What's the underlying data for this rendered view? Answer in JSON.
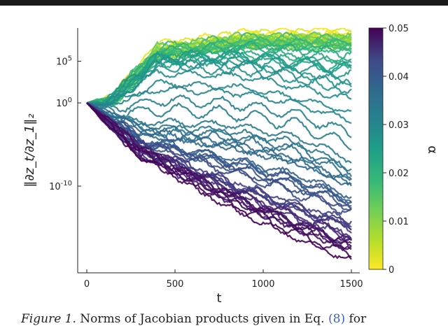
{
  "chart_data": {
    "type": "line",
    "title": "",
    "xlabel": "t",
    "ylabel": "‖∂z_t/∂z_1‖₂",
    "x_range": [
      0,
      1500
    ],
    "y_scale": "log",
    "y_range_log10": [
      -20,
      9
    ],
    "x_ticks": [
      0,
      500,
      1000,
      1500
    ],
    "x_tick_labels": [
      "0",
      "500",
      "1000",
      "1500"
    ],
    "y_ticks_log10": [
      -10,
      0,
      5
    ],
    "y_tick_labels": [
      "10",
      "10",
      "10"
    ],
    "y_tick_exponents": [
      "-10",
      "0",
      "5"
    ],
    "grid": false,
    "colorbar": {
      "label": "α",
      "range": [
        0,
        0.05
      ],
      "ticks": [
        0,
        0.01,
        0.02,
        0.03,
        0.04,
        0.05
      ],
      "tick_labels": [
        "0",
        "0.01",
        "0.02",
        "0.03",
        "0.04",
        "0.05"
      ],
      "colormap": "viridis-reversed",
      "color_stops": [
        "#fde725",
        "#5ec962",
        "#21918c",
        "#3b528b",
        "#440154"
      ]
    },
    "series_summary": [
      {
        "alpha": 0.0,
        "log10_norm_at_t": [
          [
            0,
            0
          ],
          [
            150,
            0.5
          ],
          [
            400,
            6.5
          ],
          [
            900,
            8.0
          ],
          [
            1500,
            8.2
          ]
        ]
      },
      {
        "alpha": 0.017,
        "log10_norm_at_t": [
          [
            0,
            0
          ],
          [
            150,
            0.3
          ],
          [
            400,
            6.0
          ],
          [
            900,
            7.2
          ],
          [
            1500,
            7.0
          ]
        ]
      },
      {
        "alpha": 0.025,
        "log10_norm_at_t": [
          [
            0,
            0
          ],
          [
            100,
            -0.2
          ],
          [
            400,
            4.5
          ],
          [
            900,
            4.0
          ],
          [
            1500,
            1.5
          ]
        ]
      },
      {
        "alpha": 0.03,
        "log10_norm_at_t": [
          [
            0,
            0
          ],
          [
            300,
            -3.0
          ],
          [
            800,
            -3.5
          ],
          [
            1200,
            -5.0
          ],
          [
            1500,
            -8.0
          ]
        ]
      },
      {
        "alpha": 0.04,
        "log10_norm_at_t": [
          [
            0,
            0
          ],
          [
            300,
            -5.5
          ],
          [
            800,
            -9.5
          ],
          [
            1200,
            -12.5
          ],
          [
            1500,
            -14.5
          ]
        ]
      },
      {
        "alpha": 0.05,
        "log10_norm_at_t": [
          [
            0,
            0
          ],
          [
            300,
            -6.0
          ],
          [
            800,
            -12.0
          ],
          [
            1200,
            -16.0
          ],
          [
            1500,
            -18.5
          ]
        ]
      }
    ]
  },
  "caption": {
    "prefix": "Figure 1.",
    "text": " Norms of Jacobian products given in Eq. ",
    "ref": "(8)",
    "suffix": " for"
  }
}
